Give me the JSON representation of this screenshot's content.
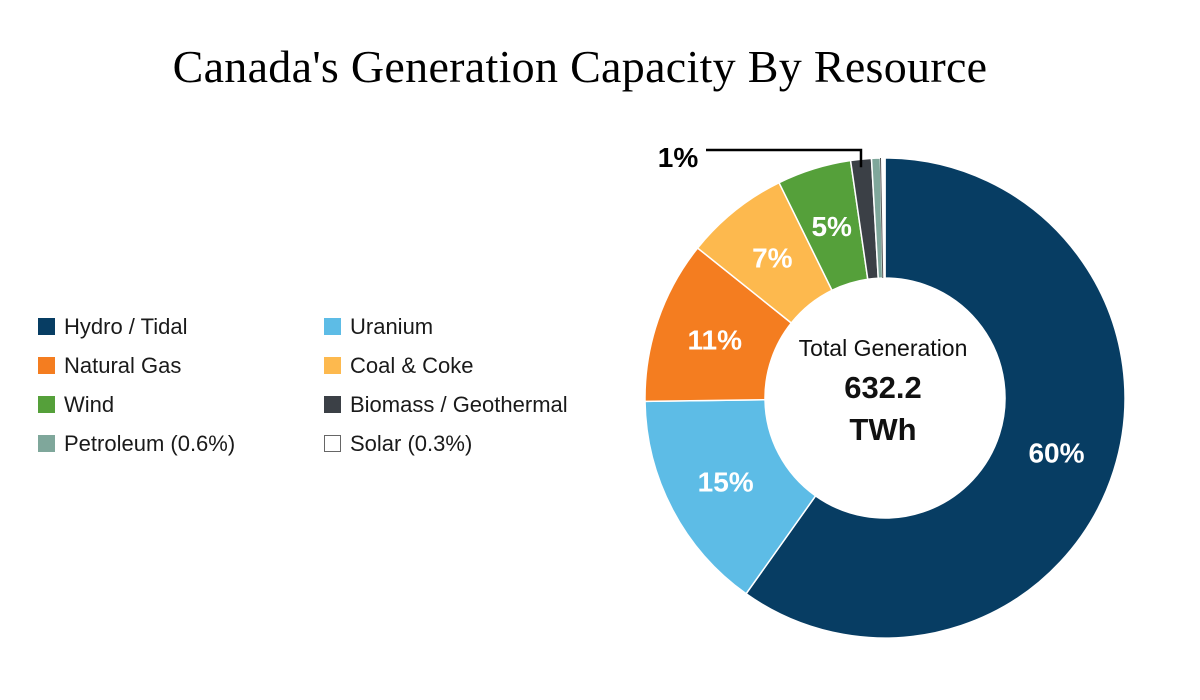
{
  "chart_data": {
    "type": "pie",
    "title": "Canada's Generation Capacity By Resource",
    "center_label": "Total Generation",
    "center_value": "632.2",
    "center_unit": "TWh",
    "legend_placement": "left",
    "slices": [
      {
        "name": "Hydro / Tidal",
        "legend_label": "Hydro / Tidal",
        "value": 60.0,
        "label": "60%",
        "color": "#073d63"
      },
      {
        "name": "Uranium",
        "legend_label": "Uranium",
        "value": 15.0,
        "label": "15%",
        "color": "#5dbce6"
      },
      {
        "name": "Natural Gas",
        "legend_label": "Natural Gas",
        "value": 11.0,
        "label": "11%",
        "color": "#f47d20"
      },
      {
        "name": "Coal & Coke",
        "legend_label": "Coal & Coke",
        "value": 7.0,
        "label": "7%",
        "color": "#fdb94e"
      },
      {
        "name": "Wind",
        "legend_label": "Wind",
        "value": 5.0,
        "label": "5%",
        "color": "#55a03a"
      },
      {
        "name": "Biomass / Geothermal",
        "legend_label": "Biomass / Geothermal",
        "value": 1.4,
        "label": "1%",
        "color": "#3b4046"
      },
      {
        "name": "Petroleum",
        "legend_label": "Petroleum (0.6%)",
        "value": 0.6,
        "label": "",
        "color": "#7fa79b"
      },
      {
        "name": "Solar",
        "legend_label": "Solar (0.3%)",
        "value": 0.3,
        "label": "",
        "color": "#ffffff"
      }
    ],
    "legend_order": [
      "Hydro / Tidal",
      "Uranium",
      "Natural Gas",
      "Coal & Coke",
      "Wind",
      "Biomass / Geothermal",
      "Petroleum",
      "Solar"
    ]
  }
}
